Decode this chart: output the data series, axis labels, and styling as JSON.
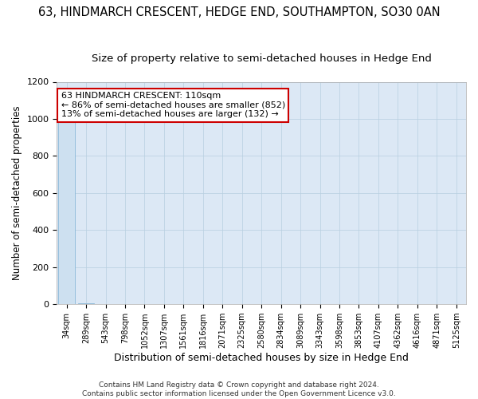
{
  "title": "63, HINDMARCH CRESCENT, HEDGE END, SOUTHAMPTON, SO30 0AN",
  "subtitle": "Size of property relative to semi-detached houses in Hedge End",
  "xlabel": "Distribution of semi-detached houses by size in Hedge End",
  "ylabel": "Number of semi-detached properties",
  "categories": [
    "34sqm",
    "289sqm",
    "543sqm",
    "798sqm",
    "1052sqm",
    "1307sqm",
    "1561sqm",
    "1816sqm",
    "2071sqm",
    "2325sqm",
    "2580sqm",
    "2834sqm",
    "3089sqm",
    "3343sqm",
    "3598sqm",
    "3853sqm",
    "4107sqm",
    "4362sqm",
    "4616sqm",
    "4871sqm",
    "5125sqm"
  ],
  "values": [
    1000,
    3,
    1,
    1,
    0,
    0,
    0,
    0,
    0,
    0,
    0,
    0,
    0,
    0,
    0,
    0,
    0,
    0,
    0,
    0,
    0
  ],
  "bar_fill_color": "#cde0f0",
  "bar_edge_color": "#8ab8d8",
  "ylim": [
    0,
    1200
  ],
  "yticks": [
    0,
    200,
    400,
    600,
    800,
    1000,
    1200
  ],
  "annotation_text": "63 HINDMARCH CRESCENT: 110sqm\n← 86% of semi-detached houses are smaller (852)\n13% of semi-detached houses are larger (132) →",
  "annotation_box_color": "#ffffff",
  "annotation_border_color": "#cc0000",
  "footer_line1": "Contains HM Land Registry data © Crown copyright and database right 2024.",
  "footer_line2": "Contains public sector information licensed under the Open Government Licence v3.0.",
  "bg_color": "#ffffff",
  "plot_bg_color": "#dce8f5",
  "grid_color": "#b8cfe0",
  "title_fontsize": 10.5,
  "subtitle_fontsize": 9.5,
  "ylabel_fontsize": 8.5,
  "xlabel_fontsize": 9,
  "tick_fontsize": 8,
  "annot_fontsize": 8,
  "footer_fontsize": 6.5
}
